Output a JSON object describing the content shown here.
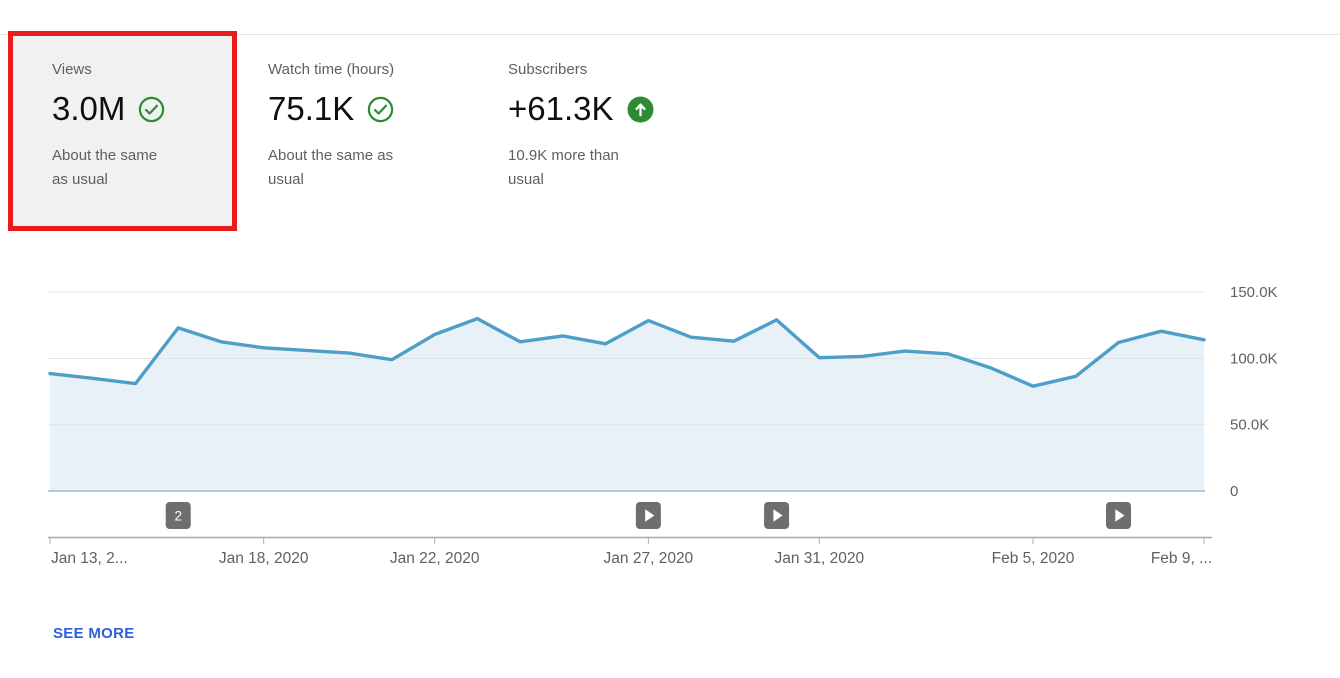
{
  "summary_cards": [
    {
      "title": "Views",
      "value": "3.0M",
      "status_icon": "check-circle",
      "subtitle_line1": "About the same",
      "subtitle_line2": "as usual",
      "highlighted": true
    },
    {
      "title": "Watch time (hours)",
      "value": "75.1K",
      "status_icon": "check-circle",
      "subtitle_line1": "About the same as",
      "subtitle_line2": "usual",
      "highlighted": false
    },
    {
      "title": "Subscribers",
      "value": "+61.3K",
      "status_icon": "arrow-up-circle",
      "subtitle_line1": "10.9K more than",
      "subtitle_line2": "usual",
      "highlighted": false
    }
  ],
  "see_more_label": "SEE MORE",
  "colors": {
    "line": "#4e9fc7",
    "fill": "#e9f1f8",
    "grid": "#dfe2e5",
    "baseline": "#a3b9c6",
    "axis": "#a8a8a8",
    "tick": "#adadad",
    "axis_text": "#606060",
    "badge_bg": "#6e6e6e",
    "badge_fg": "#ffffff",
    "positive_green": "#2e8b33",
    "annotation_red": "#e81c1c",
    "link_blue": "#2d5fd6",
    "card_bg": "#f1f1f1"
  },
  "chart_data": {
    "type": "area",
    "title": "Views per day",
    "x": [
      "Jan 13, 2020",
      "Jan 14, 2020",
      "Jan 15, 2020",
      "Jan 16, 2020",
      "Jan 17, 2020",
      "Jan 18, 2020",
      "Jan 19, 2020",
      "Jan 20, 2020",
      "Jan 21, 2020",
      "Jan 22, 2020",
      "Jan 23, 2020",
      "Jan 24, 2020",
      "Jan 25, 2020",
      "Jan 26, 2020",
      "Jan 27, 2020",
      "Jan 28, 2020",
      "Jan 29, 2020",
      "Jan 30, 2020",
      "Jan 31, 2020",
      "Feb 1, 2020",
      "Feb 2, 2020",
      "Feb 3, 2020",
      "Feb 4, 2020",
      "Feb 5, 2020",
      "Feb 6, 2020",
      "Feb 7, 2020",
      "Feb 8, 2020",
      "Feb 9, 2020"
    ],
    "values_thousands": [
      88.5,
      85,
      81,
      123,
      112.5,
      108,
      106,
      104,
      99,
      118,
      130,
      112.5,
      117,
      111,
      128.5,
      116,
      113,
      129,
      100.5,
      101.5,
      105.5,
      103.5,
      93,
      79,
      86.5,
      112,
      120.5,
      114
    ],
    "ylim_thousands": [
      0,
      162
    ],
    "grid": true,
    "legend": false,
    "y_axis_position": "right",
    "yticks": [
      {
        "label": "150.0K",
        "value": 150
      },
      {
        "label": "100.0K",
        "value": 100
      },
      {
        "label": "50.0K",
        "value": 50
      },
      {
        "label": "0",
        "value": 0
      }
    ],
    "xticks": [
      {
        "label": "Jan 13, 2...",
        "index": 0,
        "align": "start"
      },
      {
        "label": "Jan 18, 2020",
        "index": 5,
        "align": "middle"
      },
      {
        "label": "Jan 22, 2020",
        "index": 9,
        "align": "middle"
      },
      {
        "label": "Jan 27, 2020",
        "index": 14,
        "align": "middle"
      },
      {
        "label": "Jan 31, 2020",
        "index": 18,
        "align": "middle"
      },
      {
        "label": "Feb 5, 2020",
        "index": 23,
        "align": "middle"
      },
      {
        "label": "Feb 9, ...",
        "index": 27,
        "align": "end"
      }
    ],
    "markers": [
      {
        "index": 3,
        "type": "count",
        "label": "2"
      },
      {
        "index": 14,
        "type": "play",
        "label": ""
      },
      {
        "index": 17,
        "type": "play",
        "label": ""
      },
      {
        "index": 25,
        "type": "play",
        "label": ""
      }
    ]
  }
}
